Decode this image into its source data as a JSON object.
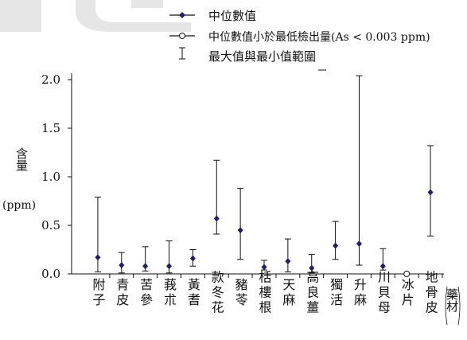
{
  "chart_data": {
    "type": "scatter",
    "title": "",
    "xlabel": "藥材",
    "ylabel": "含量",
    "yunit": "(ppm)",
    "ylim": [
      0,
      2.0
    ],
    "yticks": [
      "0.0",
      "0.5",
      "1.0",
      "1.5",
      "2.0"
    ],
    "legend": {
      "position": "top-right",
      "items": [
        {
          "marker": "filled-diamond",
          "label": "中位數值"
        },
        {
          "marker": "open-circle",
          "label": "中位數值小於最低檢出量(As < 0.003 ppm)"
        },
        {
          "marker": "error-bar",
          "label": "最大值與最小值範圍"
        }
      ]
    },
    "categories": [
      "附子",
      "青皮",
      "苦參",
      "莪朮",
      "黃耆",
      "款冬花",
      "豬苓",
      "栝樓根",
      "天麻",
      "高良薑",
      "獨活",
      "升麻",
      "川貝母",
      "冰片",
      "地骨皮"
    ],
    "median": [
      0.17,
      0.09,
      0.08,
      0.08,
      0.16,
      0.57,
      0.45,
      0.07,
      0.13,
      0.06,
      0.29,
      0.31,
      0.08,
      0.0,
      0.84
    ],
    "min": [
      0.02,
      0.01,
      0.03,
      0.01,
      0.08,
      0.41,
      0.15,
      0.04,
      0.02,
      0.01,
      0.15,
      0.09,
      0.04,
      0.0,
      0.39
    ],
    "max": [
      0.79,
      0.22,
      0.28,
      0.34,
      0.25,
      1.17,
      0.88,
      0.14,
      0.36,
      0.2,
      0.54,
      2.04,
      0.26,
      0.0,
      1.32
    ],
    "below_detection": [
      false,
      false,
      false,
      false,
      false,
      false,
      false,
      false,
      false,
      false,
      false,
      false,
      false,
      true,
      false
    ],
    "colors": {
      "marker": "#1f1f6b",
      "axis": "#111111",
      "watermark": "#e6e6e6"
    }
  }
}
